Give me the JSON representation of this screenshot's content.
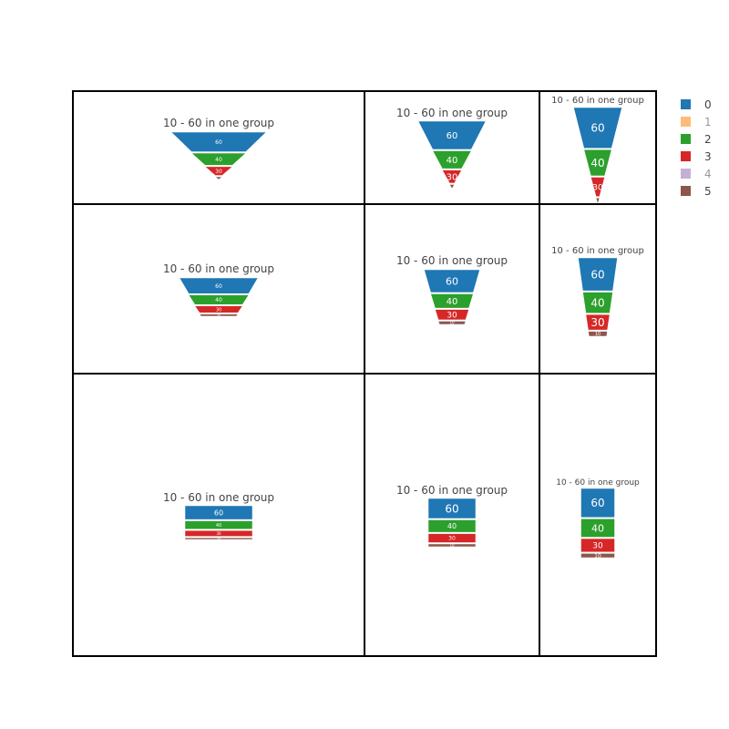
{
  "chart_data": {
    "type": "funnelarea",
    "title": "",
    "group_title": "10 - 60 in one group",
    "values": [
      60,
      40,
      30,
      10
    ],
    "series_names": [
      "0",
      "2",
      "3",
      "5"
    ],
    "colors": {
      "0": "#1f77b4",
      "1": "#ffbb78",
      "2": "#2ca02c",
      "3": "#d62728",
      "4": "#c5b0d5",
      "5": "#8c564b"
    },
    "legend": {
      "placement": "top-right",
      "entries": [
        {
          "label": "0",
          "color": "#1f77b4",
          "visible": true
        },
        {
          "label": "1",
          "color": "#ffbb78",
          "visible": false
        },
        {
          "label": "2",
          "color": "#2ca02c",
          "visible": true
        },
        {
          "label": "3",
          "color": "#d62728",
          "visible": true
        },
        {
          "label": "4",
          "color": "#c5b0d5",
          "visible": false
        },
        {
          "label": "5",
          "color": "#8c564b",
          "visible": true
        }
      ]
    },
    "grid": {
      "rows": 3,
      "cols": 3
    },
    "panels": [
      {
        "row": 0,
        "col": 0,
        "taper": "full"
      },
      {
        "row": 0,
        "col": 1,
        "taper": "full"
      },
      {
        "row": 0,
        "col": 2,
        "taper": "full"
      },
      {
        "row": 1,
        "col": 0,
        "taper": "partial"
      },
      {
        "row": 1,
        "col": 1,
        "taper": "partial"
      },
      {
        "row": 1,
        "col": 2,
        "taper": "partial"
      },
      {
        "row": 2,
        "col": 0,
        "taper": "none"
      },
      {
        "row": 2,
        "col": 1,
        "taper": "none"
      },
      {
        "row": 2,
        "col": 2,
        "taper": "none"
      }
    ]
  }
}
